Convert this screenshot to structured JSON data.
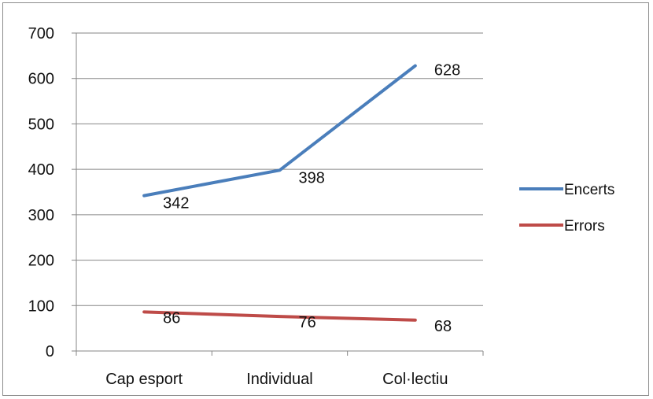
{
  "chart_data": {
    "type": "line",
    "categories": [
      "Cap esport",
      "Individual",
      "Col·lectiu"
    ],
    "series": [
      {
        "name": "Encerts",
        "values": [
          342,
          398,
          628
        ],
        "color": "#4a7ebb"
      },
      {
        "name": "Errors",
        "values": [
          86,
          76,
          68
        ],
        "color": "#be4b48"
      }
    ],
    "ylim": [
      0,
      700
    ],
    "yticks": [
      0,
      100,
      200,
      300,
      400,
      500,
      600,
      700
    ],
    "grid": true,
    "legend": "right",
    "data_labels": true
  }
}
